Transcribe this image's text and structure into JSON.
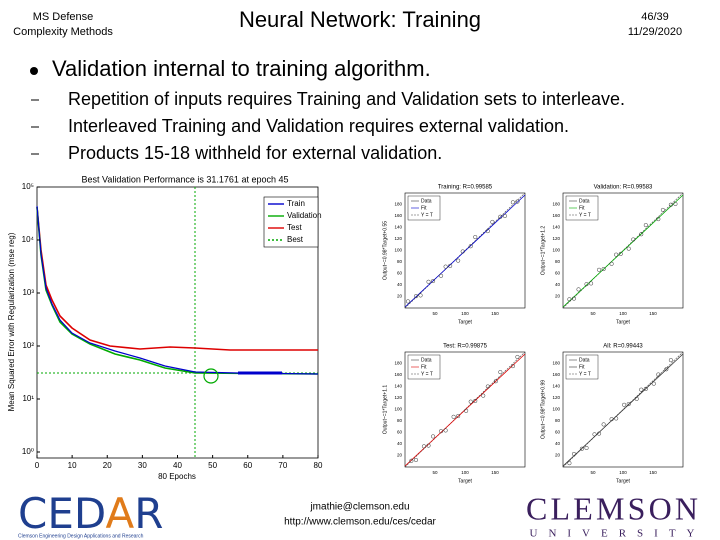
{
  "header": {
    "course": [
      "MS Defense",
      "Complexity Methods"
    ],
    "title": "Neural Network: Training",
    "page": "46/39",
    "date": "11/29/2020"
  },
  "bullet": "Validation internal to training algorithm.",
  "sub_bullets": [
    "Repetition of inputs requires Training and Validation sets to interleave.",
    "Interleaved Training and Validation requires external validation.",
    "Products 15-18 withheld for external validation."
  ],
  "performance_plot": {
    "title": "Best Validation Performance is 31.1761 at epoch 45",
    "ylabel": "Mean Squared Error with Regularization  (mse reg)",
    "xlabel": "80 Epochs",
    "xticks": [
      "0",
      "10",
      "20",
      "30",
      "40",
      "50",
      "60",
      "70",
      "80"
    ],
    "yticks": [
      "10⁰",
      "10¹",
      "10²",
      "10³",
      "10⁴",
      "10⁵"
    ],
    "legend": [
      "Train",
      "Validation",
      "Test",
      "Best"
    ]
  },
  "regression_plots": [
    {
      "title": "Training: R=0.99585",
      "ylabel": "Output~=0.98*Target+0.55"
    },
    {
      "title": "Validation: R=0.99583",
      "ylabel": "Output~=1*Target+1.2"
    },
    {
      "title": "Test: R=0.99875",
      "ylabel": "Output~=1*Target+1.1"
    },
    {
      "title": "All: R=0.99443",
      "ylabel": "Output~=0.98*Target+0.99"
    }
  ],
  "regression_legend": [
    "Data",
    "Fit",
    "Y = T"
  ],
  "regression_xlabel": "Target",
  "regression_xticks": [
    "50",
    "100",
    "150"
  ],
  "regression_yticks": [
    "20",
    "40",
    "60",
    "80",
    "100",
    "120",
    "140",
    "160",
    "180"
  ],
  "footer": {
    "cedar": [
      "CED",
      "A",
      "R"
    ],
    "cedar_caption": "Clemson Engineering Design Applications and Research",
    "email": "jmathie@clemson.edu",
    "url": "http://www.clemson.edu/ces/cedar",
    "clemson": "CLEMSON",
    "university": "UNIVERSITY"
  }
}
